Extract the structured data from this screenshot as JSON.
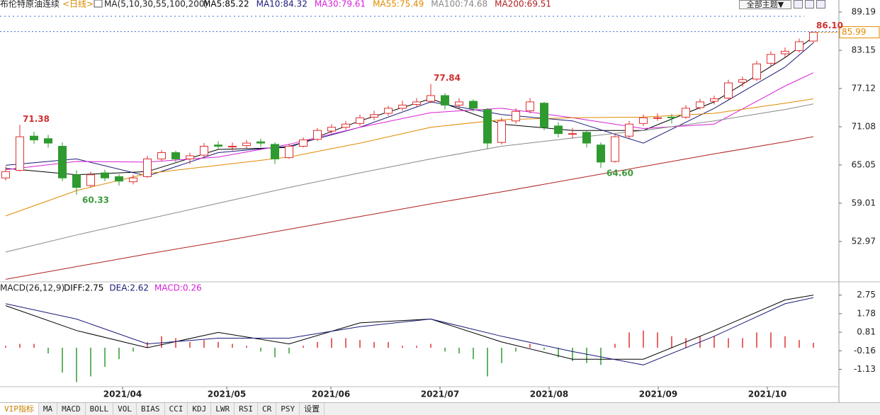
{
  "header": {
    "title": "布伦特原油连续",
    "period": "<日线>",
    "theme_button": "全部主题▼"
  },
  "chart_data": [
    {
      "type": "candlestick",
      "ma_label": "MA(5,10,30,55,100,200)",
      "up_color": "#e03030",
      "down_color": "#2f9a2f",
      "candles": [
        [
          63.0,
          64.8,
          62.6,
          64.0
        ],
        [
          64.2,
          71.38,
          64.0,
          69.5
        ],
        [
          69.6,
          70.3,
          68.4,
          69.0
        ],
        [
          69.2,
          69.8,
          67.8,
          68.5
        ],
        [
          68.0,
          68.6,
          62.5,
          63.0
        ],
        [
          63.5,
          64.2,
          60.33,
          61.5
        ],
        [
          61.8,
          64.0,
          61.5,
          63.5
        ],
        [
          63.8,
          64.3,
          62.5,
          63.0
        ],
        [
          63.2,
          63.6,
          61.8,
          62.5
        ],
        [
          62.4,
          63.5,
          62.0,
          63.0
        ],
        [
          63.2,
          66.5,
          63.0,
          66.0
        ],
        [
          66.0,
          67.4,
          65.6,
          67.0
        ],
        [
          67.0,
          67.3,
          65.5,
          66.0
        ],
        [
          66.0,
          67.0,
          65.2,
          66.5
        ],
        [
          66.6,
          68.5,
          66.3,
          68.0
        ],
        [
          68.2,
          68.8,
          67.4,
          68.0
        ],
        [
          68.0,
          68.6,
          67.3,
          68.0
        ],
        [
          68.1,
          69.0,
          67.7,
          68.5
        ],
        [
          68.7,
          69.2,
          67.9,
          68.5
        ],
        [
          68.3,
          68.6,
          65.2,
          66.0
        ],
        [
          66.2,
          68.4,
          66.0,
          68.0
        ],
        [
          68.0,
          69.4,
          67.8,
          69.0
        ],
        [
          69.1,
          70.9,
          68.8,
          70.5
        ],
        [
          70.4,
          71.5,
          70.0,
          71.0
        ],
        [
          71.0,
          72.0,
          70.6,
          71.5
        ],
        [
          71.6,
          73.0,
          71.2,
          72.5
        ],
        [
          72.6,
          73.6,
          72.1,
          73.0
        ],
        [
          73.2,
          74.4,
          72.8,
          74.0
        ],
        [
          74.0,
          75.2,
          73.6,
          74.5
        ],
        [
          74.6,
          75.6,
          74.2,
          75.0
        ],
        [
          75.1,
          77.84,
          74.8,
          76.0
        ],
        [
          76.0,
          76.4,
          73.8,
          74.5
        ],
        [
          74.5,
          75.6,
          74.0,
          75.0
        ],
        [
          75.1,
          75.4,
          73.5,
          74.0
        ],
        [
          73.8,
          74.0,
          67.6,
          68.5
        ],
        [
          68.6,
          72.5,
          68.3,
          72.0
        ],
        [
          72.0,
          74.0,
          71.6,
          73.5
        ],
        [
          73.6,
          75.6,
          73.2,
          75.0
        ],
        [
          74.8,
          75.0,
          70.5,
          71.0
        ],
        [
          71.2,
          71.8,
          69.4,
          70.0
        ],
        [
          70.0,
          70.9,
          69.2,
          70.0
        ],
        [
          70.2,
          70.5,
          67.8,
          68.5
        ],
        [
          68.2,
          68.6,
          64.6,
          65.5
        ],
        [
          65.6,
          70.0,
          65.4,
          69.5
        ],
        [
          69.6,
          72.0,
          69.2,
          71.5
        ],
        [
          71.6,
          73.0,
          71.2,
          72.5
        ],
        [
          72.4,
          73.2,
          72.0,
          72.5
        ],
        [
          72.6,
          73.1,
          71.6,
          72.5
        ],
        [
          72.6,
          74.5,
          72.3,
          74.0
        ],
        [
          74.1,
          75.5,
          73.8,
          75.0
        ],
        [
          75.1,
          76.0,
          74.6,
          75.5
        ],
        [
          75.6,
          78.5,
          75.3,
          78.0
        ],
        [
          78.1,
          79.0,
          77.4,
          78.5
        ],
        [
          78.6,
          81.5,
          78.3,
          81.0
        ],
        [
          81.1,
          83.0,
          80.6,
          82.5
        ],
        [
          82.6,
          83.6,
          82.0,
          83.0
        ],
        [
          83.1,
          85.0,
          82.8,
          84.5
        ],
        [
          84.6,
          86.1,
          84.3,
          85.99
        ]
      ],
      "xlim": [
        -0.4,
        58.8
      ],
      "xticks": [
        {
          "value": 8.25,
          "label": "2021/04"
        },
        {
          "value": 15.6,
          "label": "2021/05"
        },
        {
          "value": 22.95,
          "label": "2021/06"
        },
        {
          "value": 30.65,
          "label": "2021/07"
        },
        {
          "value": 38.35,
          "label": "2021/08"
        },
        {
          "value": 46.05,
          "label": "2021/09"
        },
        {
          "value": 53.75,
          "label": "2021/10"
        }
      ],
      "ylim": [
        46.93,
        89.97
      ],
      "yticks": [
        89.19,
        83.15,
        77.12,
        71.08,
        65.05,
        59.01,
        52.97
      ],
      "x": [
        0,
        5,
        10,
        15,
        20,
        25,
        30,
        35,
        40,
        45,
        50,
        55,
        57
      ],
      "series": [
        {
          "name": "MA5:85.22",
          "color": "#000000",
          "values": [
            64.5,
            63.5,
            64.0,
            67.5,
            67.8,
            72.0,
            75.5,
            71.5,
            70.5,
            70.5,
            75.0,
            82.0,
            85.22
          ]
        },
        {
          "name": "MA10:84.32",
          "color": "#1a1a7a",
          "values": [
            65.0,
            66.0,
            63.3,
            67.0,
            68.0,
            71.0,
            75.0,
            73.0,
            72.0,
            68.5,
            74.0,
            80.5,
            84.32
          ]
        },
        {
          "name": "MA30:79.61",
          "color": "#d820d8",
          "values": [
            64.3,
            65.6,
            65.5,
            66.3,
            68.3,
            71.0,
            73.3,
            74.0,
            72.5,
            70.8,
            71.5,
            77.5,
            79.61
          ]
        },
        {
          "name": "MA55:75.49",
          "color": "#e08a00",
          "values": [
            57.0,
            61.0,
            63.7,
            65.0,
            66.3,
            68.5,
            71.0,
            72.2,
            72.5,
            72.6,
            73.2,
            74.8,
            75.49
          ]
        },
        {
          "name": "MA100:74.68",
          "color": "#888888",
          "values": [
            51.3,
            54.0,
            56.5,
            59.0,
            61.5,
            63.8,
            66.0,
            68.0,
            69.3,
            70.5,
            72.0,
            73.8,
            74.68
          ]
        },
        {
          "name": "MA200:69.51",
          "color": "#b02020",
          "values": [
            47.0,
            49.0,
            51.0,
            52.9,
            54.9,
            56.9,
            58.9,
            60.8,
            62.8,
            64.8,
            66.8,
            68.7,
            69.51
          ]
        }
      ],
      "annotations": [
        {
          "value": 71.38,
          "label": "71.38"
        },
        {
          "value": 60.33,
          "label": "60.33"
        },
        {
          "value": 77.84,
          "label": "77.84"
        },
        {
          "value": 64.6,
          "label": "64.60"
        },
        {
          "value": 86.1,
          "label": "86.10"
        }
      ]
    },
    {
      "type": "macd",
      "title": "MACD(26,12,9)",
      "up_color": "#e03030",
      "down_color": "#2f9a2f",
      "xlim": [
        -0.4,
        58.8
      ],
      "ylim": [
        -2.0,
        3.37
      ],
      "yticks": [
        2.75,
        1.78,
        0.81,
        -0.16,
        -1.13
      ],
      "x": [
        0,
        5,
        10,
        15,
        20,
        25,
        30,
        35,
        40,
        45,
        50,
        55,
        57
      ],
      "series": [
        {
          "name": "DIFF:2.75",
          "color": "#000000",
          "values": [
            2.2,
            0.9,
            0.0,
            0.8,
            0.2,
            1.3,
            1.5,
            0.3,
            -0.6,
            -0.6,
            0.9,
            2.5,
            2.75
          ]
        },
        {
          "name": "DEA:2.62",
          "color": "#1a1a7a",
          "values": [
            2.3,
            1.5,
            0.2,
            0.5,
            0.5,
            1.1,
            1.5,
            0.6,
            -0.2,
            -0.9,
            0.6,
            2.3,
            2.62
          ]
        }
      ],
      "histogram": {
        "name": "MACD:0.26",
        "color": "#d820d8",
        "values": [
          0.1,
          0.2,
          0.2,
          -0.3,
          -1.3,
          -1.8,
          -1.5,
          -1.0,
          -0.6,
          -0.2,
          0.3,
          0.6,
          0.5,
          0.3,
          0.4,
          0.3,
          0.2,
          0.1,
          -0.2,
          -0.5,
          -0.3,
          0.1,
          0.3,
          0.5,
          0.5,
          0.4,
          0.3,
          0.3,
          0.1,
          0.1,
          0.2,
          -0.2,
          -0.3,
          -0.6,
          -1.5,
          -0.8,
          -0.2,
          0.2,
          -0.1,
          -0.5,
          -0.7,
          -0.8,
          -0.9,
          0.2,
          0.8,
          0.9,
          0.8,
          0.6,
          0.5,
          0.6,
          0.6,
          0.5,
          0.5,
          0.8,
          0.8,
          0.6,
          0.4,
          0.26
        ]
      }
    }
  ],
  "tabs": [
    "VIP指标",
    "MA",
    "MACD",
    "BOLL",
    "VOL",
    "BIAS",
    "CCI",
    "KDJ",
    "LWR",
    "RSI",
    "CR",
    "PSY",
    "设置"
  ]
}
